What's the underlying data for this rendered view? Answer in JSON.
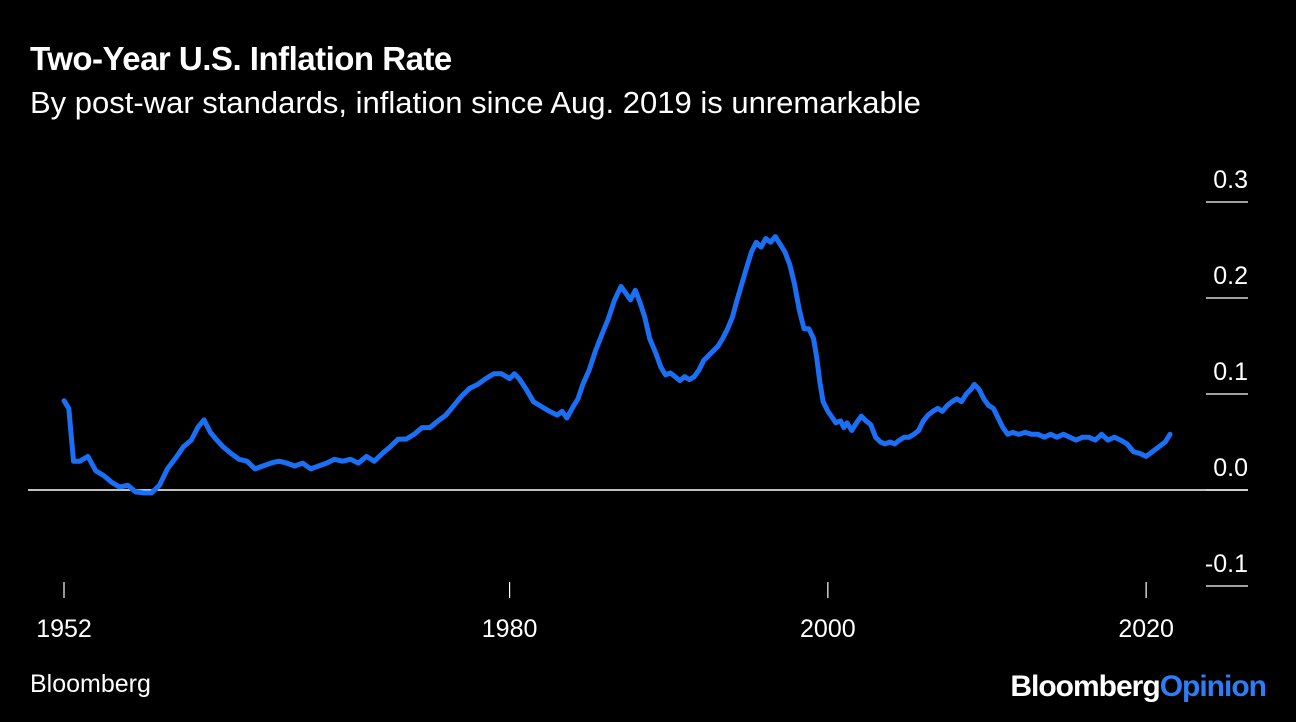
{
  "header": {
    "title": "Two-Year U.S. Inflation Rate",
    "subtitle": "By post-war standards, inflation since Aug. 2019 is unremarkable"
  },
  "footer": {
    "source": "Bloomberg",
    "brand_part1": "Bloomberg",
    "brand_part2": "Opinion"
  },
  "colors": {
    "background": "#000000",
    "line": "#1a6ff5",
    "axis": "#ffffff",
    "brand_accent": "#2d7df6"
  },
  "chart_data": {
    "type": "line",
    "title": "Two-Year U.S. Inflation Rate",
    "subtitle": "By post-war standards, inflation since Aug. 2019 is unremarkable",
    "xlabel": "",
    "ylabel": "",
    "xlim": [
      1952,
      2021.5
    ],
    "ylim": [
      -0.1,
      0.3
    ],
    "x_ticks": [
      1952,
      1980,
      2000,
      2020
    ],
    "x_tick_labels": [
      "1952",
      "1980",
      "2000",
      "2020"
    ],
    "y_ticks": [
      0.3,
      0.2,
      0.1,
      0.0,
      -0.1
    ],
    "y_tick_labels": [
      "0.3",
      "0.2",
      "0.1",
      "0.0",
      "-0.1"
    ],
    "y_axis_position": "right",
    "grid": false,
    "zero_line": true,
    "series": [
      {
        "values": [
          [
            1952.0,
            0.093
          ],
          [
            1952.3,
            0.085
          ],
          [
            1952.6,
            0.03
          ],
          [
            1953.0,
            0.03
          ],
          [
            1953.5,
            0.035
          ],
          [
            1954.0,
            0.02
          ],
          [
            1954.5,
            0.015
          ],
          [
            1955.0,
            0.008
          ],
          [
            1955.5,
            0.003
          ],
          [
            1956.0,
            0.005
          ],
          [
            1956.5,
            -0.002
          ],
          [
            1957.0,
            -0.003
          ],
          [
            1957.5,
            -0.003
          ],
          [
            1958.0,
            0.005
          ],
          [
            1958.5,
            0.022
          ],
          [
            1959.0,
            0.033
          ],
          [
            1959.5,
            0.045
          ],
          [
            1960.0,
            0.052
          ],
          [
            1960.4,
            0.065
          ],
          [
            1960.8,
            0.073
          ],
          [
            1961.2,
            0.06
          ],
          [
            1961.6,
            0.052
          ],
          [
            1962.0,
            0.045
          ],
          [
            1962.5,
            0.038
          ],
          [
            1963.0,
            0.032
          ],
          [
            1963.5,
            0.03
          ],
          [
            1964.0,
            0.022
          ],
          [
            1964.5,
            0.025
          ],
          [
            1965.0,
            0.028
          ],
          [
            1965.5,
            0.03
          ],
          [
            1966.0,
            0.028
          ],
          [
            1966.5,
            0.025
          ],
          [
            1967.0,
            0.028
          ],
          [
            1967.5,
            0.022
          ],
          [
            1968.0,
            0.025
          ],
          [
            1968.5,
            0.028
          ],
          [
            1969.0,
            0.032
          ],
          [
            1969.5,
            0.03
          ],
          [
            1970.0,
            0.032
          ],
          [
            1970.5,
            0.028
          ],
          [
            1971.0,
            0.035
          ],
          [
            1971.5,
            0.03
          ],
          [
            1972.0,
            0.038
          ],
          [
            1972.5,
            0.045
          ],
          [
            1973.0,
            0.053
          ],
          [
            1973.5,
            0.053
          ],
          [
            1974.0,
            0.058
          ],
          [
            1974.5,
            0.065
          ],
          [
            1975.0,
            0.065
          ],
          [
            1975.5,
            0.072
          ],
          [
            1976.0,
            0.078
          ],
          [
            1976.5,
            0.088
          ],
          [
            1977.0,
            0.098
          ],
          [
            1977.5,
            0.106
          ],
          [
            1978.0,
            0.11
          ],
          [
            1978.5,
            0.116
          ],
          [
            1979.0,
            0.121
          ],
          [
            1979.5,
            0.121
          ],
          [
            1980.0,
            0.116
          ],
          [
            1980.3,
            0.121
          ],
          [
            1980.6,
            0.116
          ],
          [
            1981.0,
            0.106
          ],
          [
            1981.5,
            0.092
          ],
          [
            1982.0,
            0.087
          ],
          [
            1982.5,
            0.082
          ],
          [
            1983.0,
            0.078
          ],
          [
            1983.3,
            0.082
          ],
          [
            1983.6,
            0.075
          ],
          [
            1984.0,
            0.087
          ],
          [
            1984.3,
            0.095
          ],
          [
            1984.6,
            0.11
          ],
          [
            1985.0,
            0.125
          ],
          [
            1985.4,
            0.145
          ],
          [
            1985.8,
            0.162
          ],
          [
            1986.2,
            0.178
          ],
          [
            1986.6,
            0.198
          ],
          [
            1987.0,
            0.212
          ],
          [
            1987.3,
            0.205
          ],
          [
            1987.6,
            0.198
          ],
          [
            1987.9,
            0.208
          ],
          [
            1988.2,
            0.195
          ],
          [
            1988.5,
            0.18
          ],
          [
            1988.8,
            0.158
          ],
          [
            1989.2,
            0.142
          ],
          [
            1989.5,
            0.128
          ],
          [
            1989.8,
            0.12
          ],
          [
            1990.1,
            0.122
          ],
          [
            1990.4,
            0.118
          ],
          [
            1990.7,
            0.114
          ],
          [
            1991.0,
            0.118
          ],
          [
            1991.3,
            0.115
          ],
          [
            1991.6,
            0.118
          ],
          [
            1991.9,
            0.125
          ],
          [
            1992.2,
            0.135
          ],
          [
            1992.5,
            0.14
          ],
          [
            1992.8,
            0.145
          ],
          [
            1993.1,
            0.15
          ],
          [
            1993.4,
            0.158
          ],
          [
            1993.7,
            0.168
          ],
          [
            1994.0,
            0.18
          ],
          [
            1994.3,
            0.198
          ],
          [
            1994.6,
            0.215
          ],
          [
            1994.9,
            0.232
          ],
          [
            1995.2,
            0.248
          ],
          [
            1995.5,
            0.258
          ],
          [
            1995.8,
            0.253
          ],
          [
            1996.1,
            0.262
          ],
          [
            1996.4,
            0.258
          ],
          [
            1996.7,
            0.264
          ],
          [
            1997.0,
            0.256
          ],
          [
            1997.3,
            0.248
          ],
          [
            1997.6,
            0.235
          ],
          [
            1997.9,
            0.215
          ],
          [
            1998.2,
            0.188
          ],
          [
            1998.5,
            0.168
          ],
          [
            1998.8,
            0.168
          ],
          [
            1999.1,
            0.158
          ],
          [
            1999.3,
            0.138
          ],
          [
            1999.5,
            0.112
          ],
          [
            1999.7,
            0.092
          ],
          [
            2000.0,
            0.082
          ],
          [
            2000.3,
            0.075
          ],
          [
            2000.5,
            0.07
          ],
          [
            2000.8,
            0.072
          ],
          [
            2001.0,
            0.065
          ],
          [
            2001.2,
            0.07
          ],
          [
            2001.5,
            0.062
          ],
          [
            2001.8,
            0.07
          ],
          [
            2002.1,
            0.077
          ],
          [
            2002.4,
            0.072
          ],
          [
            2002.7,
            0.068
          ],
          [
            2003.0,
            0.055
          ],
          [
            2003.3,
            0.05
          ],
          [
            2003.6,
            0.048
          ],
          [
            2003.9,
            0.05
          ],
          [
            2004.2,
            0.048
          ],
          [
            2004.5,
            0.052
          ],
          [
            2004.8,
            0.055
          ],
          [
            2005.1,
            0.055
          ],
          [
            2005.4,
            0.058
          ],
          [
            2005.7,
            0.062
          ],
          [
            2006.0,
            0.072
          ],
          [
            2006.3,
            0.078
          ],
          [
            2006.6,
            0.082
          ],
          [
            2006.9,
            0.085
          ],
          [
            2007.2,
            0.082
          ],
          [
            2007.5,
            0.088
          ],
          [
            2007.8,
            0.092
          ],
          [
            2008.1,
            0.095
          ],
          [
            2008.4,
            0.092
          ],
          [
            2008.7,
            0.1
          ],
          [
            2009.0,
            0.105
          ],
          [
            2009.2,
            0.11
          ],
          [
            2009.5,
            0.105
          ],
          [
            2009.8,
            0.095
          ],
          [
            2010.1,
            0.088
          ],
          [
            2010.4,
            0.085
          ],
          [
            2010.7,
            0.075
          ],
          [
            2011.0,
            0.065
          ],
          [
            2011.3,
            0.058
          ],
          [
            2011.6,
            0.06
          ],
          [
            2012.0,
            0.058
          ],
          [
            2012.4,
            0.06
          ],
          [
            2012.8,
            0.058
          ],
          [
            2013.2,
            0.058
          ],
          [
            2013.6,
            0.055
          ],
          [
            2014.0,
            0.058
          ],
          [
            2014.4,
            0.055
          ],
          [
            2014.8,
            0.058
          ],
          [
            2015.2,
            0.055
          ],
          [
            2015.6,
            0.052
          ],
          [
            2016.0,
            0.055
          ],
          [
            2016.4,
            0.055
          ],
          [
            2016.8,
            0.052
          ],
          [
            2017.2,
            0.058
          ],
          [
            2017.6,
            0.052
          ],
          [
            2018.0,
            0.055
          ],
          [
            2018.4,
            0.052
          ],
          [
            2018.8,
            0.048
          ],
          [
            2019.2,
            0.04
          ],
          [
            2019.6,
            0.038
          ],
          [
            2020.0,
            0.035
          ],
          [
            2020.4,
            0.04
          ],
          [
            2020.8,
            0.045
          ],
          [
            2021.2,
            0.05
          ],
          [
            2021.5,
            0.058
          ]
        ]
      }
    ]
  }
}
